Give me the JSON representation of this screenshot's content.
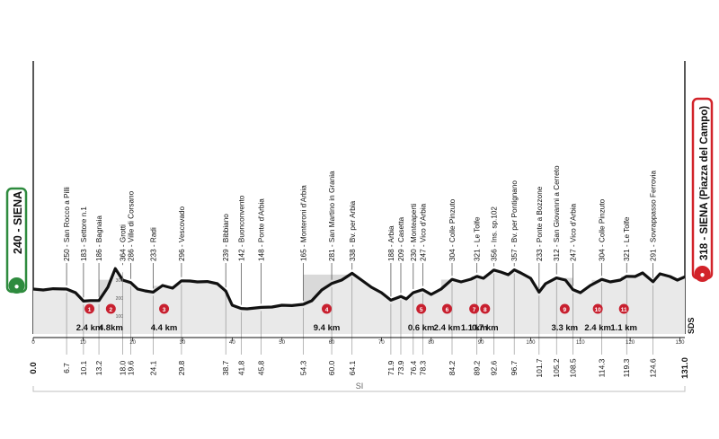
{
  "start_label": "240 - SIENA",
  "finish_label": "318 - SIENA (Piazza del Campo)",
  "footer_letter": "SI",
  "brand_mark": "SDS",
  "colors": {
    "start": "#2e8b3e",
    "finish": "#d2232a",
    "sector": "#c8202f",
    "gravel": "#d9d9d9",
    "profile": "#111111"
  },
  "chart_data": {
    "type": "area",
    "xlim": [
      0,
      131
    ],
    "ylim": [
      0,
      380
    ],
    "xticks": [
      0,
      10,
      20,
      30,
      40,
      50,
      60,
      70,
      80,
      90,
      100,
      110,
      120,
      130
    ],
    "yticks": [
      100,
      200,
      300
    ],
    "distance_labels": [
      "0.0",
      "6.7",
      "10.1",
      "13.2",
      "18.0",
      "19.6",
      "24.1",
      "29.8",
      "38.7",
      "41.8",
      "45.8",
      "54.3",
      "60.0",
      "64.1",
      "71.9",
      "73.9",
      "76.4",
      "78.3",
      "84.2",
      "89.2",
      "92.6",
      "96.7",
      "101.7",
      "105.2",
      "108.5",
      "114.3",
      "119.3",
      "124.6",
      "131.0"
    ],
    "profile_x": [
      0,
      2,
      4,
      6.7,
      8.5,
      10.1,
      11.5,
      13.2,
      15,
      16.5,
      18,
      19.6,
      21,
      22.5,
      24.1,
      26,
      28,
      29.8,
      31.5,
      33,
      35,
      37,
      38.7,
      40,
      41.8,
      43,
      45.8,
      48,
      50,
      52,
      54.3,
      56,
      58,
      60,
      62,
      64.1,
      66,
      68,
      70,
      71.9,
      73.9,
      75,
      76.4,
      78.3,
      80,
      82,
      84.2,
      86,
      88,
      89.2,
      90.5,
      92.6,
      94,
      95.5,
      96.7,
      98,
      100,
      101.7,
      103,
      105.2,
      107,
      108.5,
      110,
      112,
      114.3,
      116,
      118,
      119.3,
      121,
      122.5,
      124.6,
      126,
      128,
      129.5,
      131
    ],
    "profile_y": [
      250,
      245,
      252,
      250,
      230,
      183,
      186,
      186,
      260,
      364,
      300,
      286,
      250,
      240,
      233,
      270,
      255,
      296,
      295,
      290,
      292,
      280,
      239,
      160,
      142,
      140,
      148,
      150,
      160,
      158,
      165,
      185,
      245,
      281,
      300,
      338,
      300,
      260,
      230,
      188,
      209,
      195,
      230,
      247,
      220,
      250,
      304,
      290,
      305,
      321,
      310,
      356,
      345,
      330,
      357,
      340,
      310,
      233,
      280,
      312,
      300,
      247,
      230,
      270,
      304,
      290,
      300,
      321,
      320,
      340,
      291,
      335,
      320,
      300,
      318
    ],
    "points": [
      {
        "km": 6.7,
        "alt": 250,
        "name": "San Rocco a Pilli"
      },
      {
        "km": 10.1,
        "alt": 183,
        "name": "Settore n.1"
      },
      {
        "km": 13.2,
        "alt": 186,
        "name": "Bagnaia"
      },
      {
        "km": 18.0,
        "alt": 364,
        "name": "Grotti"
      },
      {
        "km": 19.6,
        "alt": 286,
        "name": "Ville di Corsano"
      },
      {
        "km": 24.1,
        "alt": 233,
        "name": "Radi"
      },
      {
        "km": 29.8,
        "alt": 296,
        "name": "Vescovado"
      },
      {
        "km": 38.7,
        "alt": 239,
        "name": "Bibbiano"
      },
      {
        "km": 41.8,
        "alt": 142,
        "name": "Buonconvento"
      },
      {
        "km": 45.8,
        "alt": 148,
        "name": "Ponte d'Arbia"
      },
      {
        "km": 54.3,
        "alt": 165,
        "name": "Monteroni d'Arbia"
      },
      {
        "km": 60.0,
        "alt": 281,
        "name": "San Martino in Grania"
      },
      {
        "km": 64.1,
        "alt": 338,
        "name": "Bv. per Arbia"
      },
      {
        "km": 71.9,
        "alt": 188,
        "name": "Arbia"
      },
      {
        "km": 73.9,
        "alt": 209,
        "name": "Casetta"
      },
      {
        "km": 76.4,
        "alt": 230,
        "name": "Monteaperti"
      },
      {
        "km": 78.3,
        "alt": 247,
        "name": "Vico d'Arbia"
      },
      {
        "km": 84.2,
        "alt": 304,
        "name": "Colle Pinzuto"
      },
      {
        "km": 89.2,
        "alt": 321,
        "name": "Le Tolfe"
      },
      {
        "km": 92.6,
        "alt": 356,
        "name": "Ins. sp.102"
      },
      {
        "km": 96.7,
        "alt": 357,
        "name": "Bv. per Pontignano"
      },
      {
        "km": 101.7,
        "alt": 233,
        "name": "Ponte a Bozzone"
      },
      {
        "km": 105.2,
        "alt": 312,
        "name": "San Giovanni a Cerreto"
      },
      {
        "km": 108.5,
        "alt": 247,
        "name": "Vico d'Arbia"
      },
      {
        "km": 114.3,
        "alt": 304,
        "name": "Colle Pinzuto"
      },
      {
        "km": 119.3,
        "alt": 321,
        "name": "Le Tolfe"
      },
      {
        "km": 124.6,
        "alt": 291,
        "name": "Sovrappasso Ferrovia"
      }
    ],
    "sectors": [
      {
        "num": "1",
        "start": 10.1,
        "end": 12.5,
        "length": "2.4 km"
      },
      {
        "num": "2",
        "start": 13.2,
        "end": 18.0,
        "length": "4.8km"
      },
      {
        "num": "3",
        "start": 24.1,
        "end": 28.5,
        "length": "4.4 km"
      },
      {
        "num": "4",
        "start": 54.3,
        "end": 63.7,
        "length": "9.4 km"
      },
      {
        "num": "5",
        "start": 77.7,
        "end": 78.3,
        "length": "0.6 km"
      },
      {
        "num": "6",
        "start": 82.0,
        "end": 84.4,
        "length": "2.4 km"
      },
      {
        "num": "7",
        "start": 88.1,
        "end": 89.2,
        "length": "1.1 km"
      },
      {
        "num": "8",
        "start": 90.5,
        "end": 91.2,
        "length": "0.7 km"
      },
      {
        "num": "9",
        "start": 105.2,
        "end": 108.5,
        "length": "3.3 km"
      },
      {
        "num": "10",
        "start": 112.3,
        "end": 114.7,
        "length": "2.4 km"
      },
      {
        "num": "11",
        "start": 118.2,
        "end": 119.3,
        "length": "1.1 km"
      }
    ]
  }
}
